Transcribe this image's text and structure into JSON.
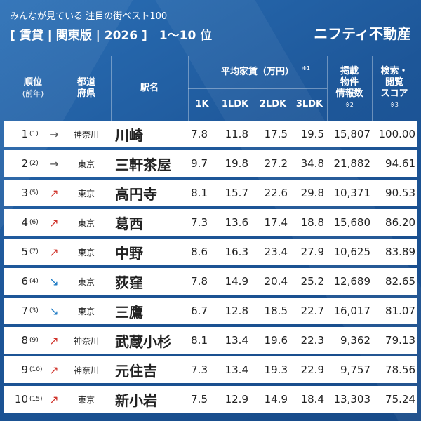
{
  "header": {
    "subtitle": "みんなが見ている 注目の街ベスト100",
    "title": "[ 賃貸 | 関東版 | 2026 ]　1〜10 位",
    "brand": "ニフティ不動産"
  },
  "columns": {
    "rank_line1": "順位",
    "rank_line2": "(前年)",
    "pref_line1": "都道",
    "pref_line2": "府県",
    "station": "駅名",
    "rent_group": "平均家賃（万円）",
    "rent_note": "※1",
    "k1": "1K",
    "k2": "1LDK",
    "k3": "2LDK",
    "k4": "3LDK",
    "listings_line1": "掲載",
    "listings_line2": "物件",
    "listings_line3": "情報数",
    "listings_note": "※2",
    "score_line1": "検索・",
    "score_line2": "閲覧",
    "score_line3": "スコア",
    "score_note": "※3"
  },
  "rows": [
    {
      "rank": "1",
      "prev": "(1)",
      "trend": "flat",
      "arrow": "→",
      "pref": "神奈川",
      "station": "川崎",
      "k1": "7.8",
      "k2": "11.8",
      "k3": "17.5",
      "k4": "19.5",
      "listings": "15,807",
      "score": "100.00"
    },
    {
      "rank": "2",
      "prev": "(2)",
      "trend": "flat",
      "arrow": "→",
      "pref": "東京",
      "station": "三軒茶屋",
      "k1": "9.7",
      "k2": "19.8",
      "k3": "27.2",
      "k4": "34.8",
      "listings": "21,882",
      "score": "94.61"
    },
    {
      "rank": "3",
      "prev": "(5)",
      "trend": "up",
      "arrow": "↗",
      "pref": "東京",
      "station": "高円寺",
      "k1": "8.1",
      "k2": "15.7",
      "k3": "22.6",
      "k4": "29.8",
      "listings": "10,371",
      "score": "90.53"
    },
    {
      "rank": "4",
      "prev": "(6)",
      "trend": "up",
      "arrow": "↗",
      "pref": "東京",
      "station": "葛西",
      "k1": "7.3",
      "k2": "13.6",
      "k3": "17.4",
      "k4": "18.8",
      "listings": "15,680",
      "score": "86.20"
    },
    {
      "rank": "5",
      "prev": "(7)",
      "trend": "up",
      "arrow": "↗",
      "pref": "東京",
      "station": "中野",
      "k1": "8.6",
      "k2": "16.3",
      "k3": "23.4",
      "k4": "27.9",
      "listings": "10,625",
      "score": "83.89"
    },
    {
      "rank": "6",
      "prev": "(4)",
      "trend": "down",
      "arrow": "↘",
      "pref": "東京",
      "station": "荻窪",
      "k1": "7.8",
      "k2": "14.9",
      "k3": "20.4",
      "k4": "25.2",
      "listings": "12,689",
      "score": "82.65"
    },
    {
      "rank": "7",
      "prev": "(3)",
      "trend": "down",
      "arrow": "↘",
      "pref": "東京",
      "station": "三鷹",
      "k1": "6.7",
      "k2": "12.8",
      "k3": "18.5",
      "k4": "22.7",
      "listings": "16,017",
      "score": "81.07"
    },
    {
      "rank": "8",
      "prev": "(9)",
      "trend": "up",
      "arrow": "↗",
      "pref": "神奈川",
      "station": "武蔵小杉",
      "k1": "8.1",
      "k2": "13.4",
      "k3": "19.6",
      "k4": "22.3",
      "listings": "9,362",
      "score": "79.13"
    },
    {
      "rank": "9",
      "prev": "(10)",
      "trend": "up",
      "arrow": "↗",
      "pref": "神奈川",
      "station": "元住吉",
      "k1": "7.3",
      "k2": "13.4",
      "k3": "19.3",
      "k4": "22.9",
      "listings": "9,757",
      "score": "78.56"
    },
    {
      "rank": "10",
      "prev": "(15)",
      "trend": "up",
      "arrow": "↗",
      "pref": "東京",
      "station": "新小岩",
      "k1": "7.5",
      "k2": "12.9",
      "k3": "14.9",
      "k4": "18.4",
      "listings": "13,303",
      "score": "75.24"
    }
  ],
  "colors": {
    "up": "#d0342c",
    "down": "#1f7bc4",
    "flat": "#555555",
    "background": "#1f5da0"
  }
}
